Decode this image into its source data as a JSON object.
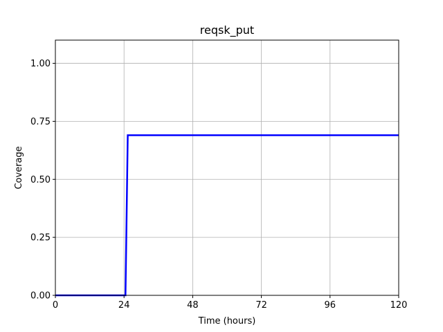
{
  "chart_data": {
    "type": "line",
    "title": "reqsk_put",
    "xlabel": "Time (hours)",
    "ylabel": "Coverage",
    "xlim": [
      0,
      120
    ],
    "ylim": [
      0,
      1.1
    ],
    "xticks": [
      0,
      24,
      48,
      72,
      96,
      120
    ],
    "xtick_labels": [
      "0",
      "24",
      "48",
      "72",
      "96",
      "120"
    ],
    "yticks": [
      0,
      0.25,
      0.5,
      0.75,
      1.0
    ],
    "ytick_labels": [
      "0.00",
      "0.25",
      "0.50",
      "0.75",
      "1.00"
    ],
    "grid": true,
    "series": [
      {
        "color": "#0000ff",
        "x": [
          0,
          24.5,
          25.3,
          120
        ],
        "y": [
          0,
          0,
          0.69,
          0.69
        ]
      }
    ]
  }
}
